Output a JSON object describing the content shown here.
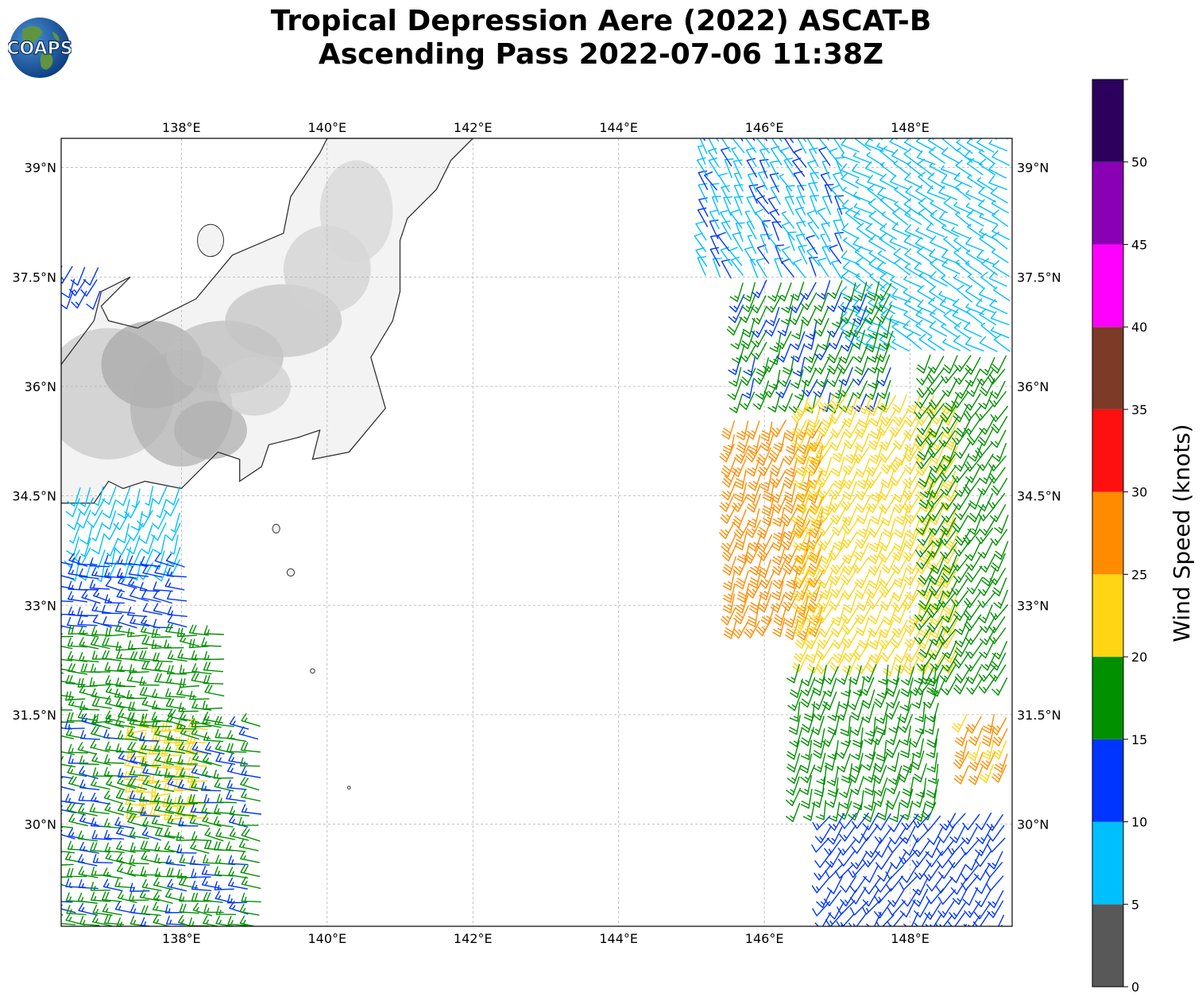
{
  "title": {
    "line1": "Tropical Depression Aere (2022) ASCAT-B",
    "line2": "Ascending Pass 2022-07-06 11:38Z"
  },
  "logo": {
    "text": "COAPS",
    "globe_color": "#1d5fa8",
    "land_color": "#6a9a3a"
  },
  "map": {
    "lon_range": [
      136.35,
      149.4
    ],
    "lat_range": [
      28.6,
      39.4
    ],
    "lon_ticks": [
      "138°E",
      "140°E",
      "142°E",
      "144°E",
      "146°E",
      "148°E"
    ],
    "lat_ticks": [
      "39°N",
      "37.5°N",
      "36°N",
      "34.5°N",
      "33°N",
      "31.5°N",
      "30°N"
    ],
    "gridlines": true,
    "coastline_color": "#333333",
    "terrain": "grayscale elevation shading over Honshu"
  },
  "colorbar": {
    "label": "Wind Speed (knots)",
    "ticks": [
      "0",
      "5",
      "10",
      "15",
      "20",
      "25",
      "30",
      "35",
      "40",
      "45",
      "50"
    ],
    "bins": [
      {
        "from": 0,
        "to": 5,
        "color": "#585858"
      },
      {
        "from": 5,
        "to": 10,
        "color": "#00bfff"
      },
      {
        "from": 10,
        "to": 15,
        "color": "#0035ff"
      },
      {
        "from": 15,
        "to": 20,
        "color": "#009000"
      },
      {
        "from": 20,
        "to": 25,
        "color": "#ffd514"
      },
      {
        "from": 25,
        "to": 30,
        "color": "#ff8c00"
      },
      {
        "from": 30,
        "to": 35,
        "color": "#ff1010"
      },
      {
        "from": 35,
        "to": 40,
        "color": "#7d3a27"
      },
      {
        "from": 40,
        "to": 45,
        "color": "#ff00ff"
      },
      {
        "from": 45,
        "to": 50,
        "color": "#8a00b4"
      },
      {
        "from": 50,
        "to": 55,
        "color": "#2c005c"
      }
    ]
  },
  "wind_regions": [
    {
      "name": "west-swath",
      "lon": [
        136.35,
        137.0
      ],
      "lat": [
        37.3,
        37.75
      ],
      "speed": 11,
      "dir": 205
    },
    {
      "name": "west-swath",
      "lon": [
        136.6,
        138.1
      ],
      "lat": [
        33.6,
        34.7
      ],
      "speed": 8,
      "dir": 200
    },
    {
      "name": "west-swath",
      "lon": [
        136.35,
        138.2
      ],
      "lat": [
        32.7,
        33.6
      ],
      "speed": 12,
      "dir": 280
    },
    {
      "name": "west-swath",
      "lon": [
        136.35,
        138.7
      ],
      "lat": [
        31.4,
        32.7
      ],
      "speed": 17,
      "dir": 275
    },
    {
      "name": "west-swath",
      "lon": [
        137.5,
        138.4
      ],
      "lat": [
        30.1,
        31.3
      ],
      "speed": 22,
      "dir": 270
    },
    {
      "name": "west-swath",
      "lon": [
        136.35,
        139.2
      ],
      "lat": [
        28.6,
        31.4
      ],
      "speed": 16,
      "dir": 278
    },
    {
      "name": "east-swath",
      "lon": [
        145.2,
        147.2
      ],
      "lat": [
        37.5,
        39.4
      ],
      "speed": 9,
      "dir": 330
    },
    {
      "name": "east-swath",
      "lon": [
        147.3,
        149.4
      ],
      "lat": [
        36.5,
        39.4
      ],
      "speed": 8,
      "dir": 300
    },
    {
      "name": "east-swath",
      "lon": [
        145.7,
        147.8
      ],
      "lat": [
        35.9,
        37.5
      ],
      "speed": 16,
      "dir": 200
    },
    {
      "name": "east-swath",
      "lon": [
        145.6,
        146.8
      ],
      "lat": [
        32.8,
        35.6
      ],
      "speed": 27,
      "dir": 200
    },
    {
      "name": "east-swath",
      "lon": [
        146.6,
        148.8
      ],
      "lat": [
        32.3,
        36.0
      ],
      "speed": 22,
      "dir": 205
    },
    {
      "name": "east-swath",
      "lon": [
        148.3,
        149.4
      ],
      "lat": [
        32.0,
        36.5
      ],
      "speed": 17,
      "dir": 210
    },
    {
      "name": "east-swath",
      "lon": [
        146.5,
        148.5
      ],
      "lat": [
        30.3,
        32.3
      ],
      "speed": 17,
      "dir": 195
    },
    {
      "name": "east-swath",
      "lon": [
        148.8,
        149.4
      ],
      "lat": [
        30.8,
        31.6
      ],
      "speed": 26,
      "dir": 200
    },
    {
      "name": "east-swath",
      "lon": [
        146.9,
        149.4
      ],
      "lat": [
        28.6,
        30.3
      ],
      "speed": 12,
      "dir": 215
    }
  ]
}
